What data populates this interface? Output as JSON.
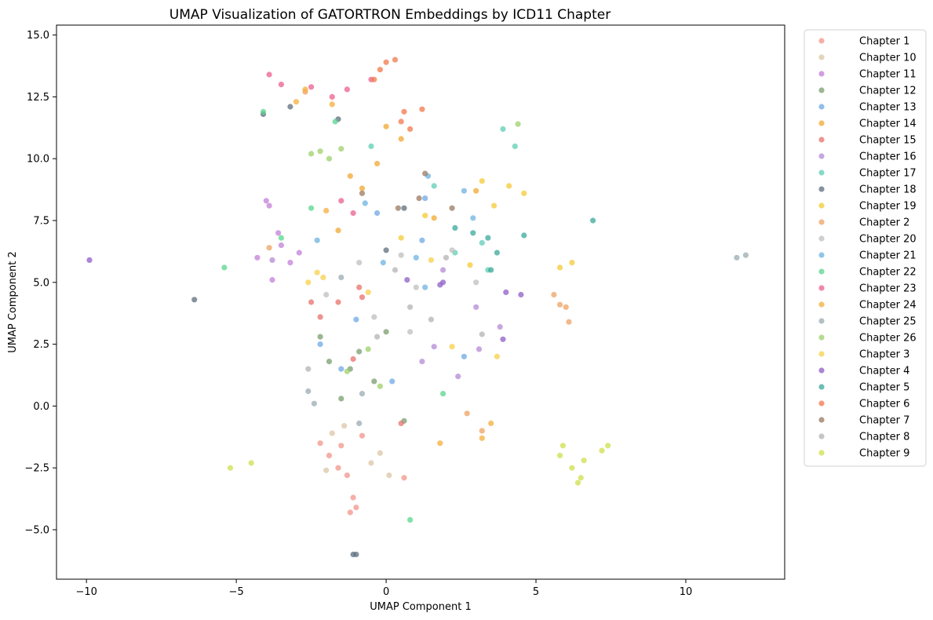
{
  "chart_data": {
    "type": "scatter",
    "title": "UMAP Visualization of GATORTRON Embeddings by ICD11 Chapter",
    "xlabel": "UMAP Component 1",
    "ylabel": "UMAP Component 2",
    "xlim": [
      -11.0,
      13.3
    ],
    "ylim": [
      -7.0,
      15.4
    ],
    "xticks": [
      -10,
      -5,
      0,
      5,
      10
    ],
    "yticks": [
      -5.0,
      -2.5,
      0.0,
      2.5,
      5.0,
      7.5,
      10.0,
      12.5,
      15.0
    ],
    "xtick_labels": [
      "−10",
      "−5",
      "0",
      "5",
      "10"
    ],
    "ytick_labels": [
      "−5.0",
      "−2.5",
      "0.0",
      "2.5",
      "5.0",
      "7.5",
      "10.0",
      "12.5",
      "15.0"
    ],
    "grid": false,
    "legend_position": "outside-right",
    "series": [
      {
        "name": "Chapter 1",
        "color": "#f1948a",
        "points": [
          [
            -1.9,
            -2.0
          ],
          [
            -1.5,
            -1.6
          ],
          [
            -1.2,
            -4.3
          ],
          [
            -1.0,
            -4.1
          ],
          [
            -1.6,
            -2.5
          ],
          [
            -1.1,
            -3.7
          ],
          [
            0.6,
            -2.9
          ],
          [
            -0.8,
            -1.2
          ],
          [
            -2.2,
            -1.5
          ],
          [
            -1.3,
            -2.8
          ]
        ]
      },
      {
        "name": "Chapter 10",
        "color": "#dcc5a6",
        "points": [
          [
            -1.8,
            -1.1
          ],
          [
            -0.5,
            -2.3
          ],
          [
            0.1,
            -2.8
          ],
          [
            -2.0,
            -2.6
          ],
          [
            -1.4,
            -0.8
          ],
          [
            -0.2,
            -1.9
          ]
        ]
      },
      {
        "name": "Chapter 11",
        "color": "#c37fd8",
        "points": [
          [
            -4.0,
            8.3
          ],
          [
            -3.5,
            6.5
          ],
          [
            -3.2,
            5.8
          ],
          [
            -3.8,
            5.1
          ],
          [
            -3.6,
            7.0
          ],
          [
            -4.3,
            6.0
          ],
          [
            -3.9,
            8.1
          ],
          [
            -2.9,
            6.2
          ]
        ]
      },
      {
        "name": "Chapter 12",
        "color": "#7a9e6e",
        "points": [
          [
            -0.9,
            2.2
          ],
          [
            -1.2,
            1.5
          ],
          [
            0.6,
            -0.6
          ],
          [
            -1.9,
            1.8
          ],
          [
            -2.2,
            2.8
          ],
          [
            0.0,
            3.0
          ],
          [
            -0.4,
            1.0
          ],
          [
            -1.5,
            0.3
          ]
        ]
      },
      {
        "name": "Chapter 13",
        "color": "#6fa8e6",
        "points": [
          [
            -1.5,
            1.5
          ],
          [
            -2.2,
            2.5
          ],
          [
            0.2,
            1.0
          ],
          [
            1.3,
            8.4
          ],
          [
            -1.0,
            3.5
          ],
          [
            2.6,
            2.0
          ],
          [
            1.2,
            6.7
          ],
          [
            -0.3,
            7.8
          ]
        ]
      },
      {
        "name": "Chapter 14",
        "color": "#f0a830",
        "points": [
          [
            -0.8,
            8.8
          ],
          [
            0.5,
            10.8
          ],
          [
            -1.2,
            9.3
          ],
          [
            -0.3,
            9.8
          ],
          [
            3.0,
            8.7
          ],
          [
            1.6,
            7.6
          ],
          [
            -1.6,
            7.1
          ],
          [
            0.0,
            11.3
          ]
        ]
      },
      {
        "name": "Chapter 15",
        "color": "#e8706a",
        "points": [
          [
            -1.6,
            4.2
          ],
          [
            -2.2,
            3.6
          ],
          [
            0.5,
            -0.7
          ],
          [
            -0.8,
            4.4
          ],
          [
            -2.5,
            4.2
          ],
          [
            -1.1,
            1.9
          ],
          [
            -0.9,
            4.8
          ]
        ]
      },
      {
        "name": "Chapter 16",
        "color": "#b48ad6",
        "points": [
          [
            2.4,
            1.2
          ],
          [
            1.2,
            1.8
          ],
          [
            3.0,
            4.0
          ],
          [
            1.9,
            5.5
          ],
          [
            3.1,
            2.3
          ],
          [
            -3.8,
            5.9
          ],
          [
            1.6,
            2.4
          ],
          [
            3.8,
            3.2
          ]
        ]
      },
      {
        "name": "Chapter 17",
        "color": "#5fcdb5",
        "points": [
          [
            3.9,
            11.2
          ],
          [
            -0.5,
            10.5
          ],
          [
            2.3,
            6.2
          ],
          [
            3.4,
            5.5
          ],
          [
            1.6,
            8.9
          ],
          [
            4.3,
            10.5
          ],
          [
            3.2,
            6.6
          ]
        ]
      },
      {
        "name": "Chapter 18",
        "color": "#5d6d7e",
        "points": [
          [
            -1.1,
            -6.0
          ],
          [
            -1.0,
            -6.0
          ],
          [
            -4.1,
            11.8
          ],
          [
            -1.6,
            11.6
          ],
          [
            -6.4,
            4.3
          ],
          [
            -3.2,
            12.1
          ],
          [
            0.0,
            6.3
          ],
          [
            0.6,
            8.0
          ]
        ]
      },
      {
        "name": "Chapter 19",
        "color": "#f4ca35",
        "points": [
          [
            1.3,
            7.7
          ],
          [
            3.6,
            8.1
          ],
          [
            4.1,
            8.9
          ],
          [
            4.6,
            8.6
          ],
          [
            5.8,
            5.6
          ],
          [
            6.2,
            5.8
          ],
          [
            0.5,
            6.8
          ],
          [
            2.8,
            5.7
          ],
          [
            3.2,
            9.1
          ]
        ]
      },
      {
        "name": "Chapter 2",
        "color": "#eda262",
        "points": [
          [
            5.6,
            4.5
          ],
          [
            6.0,
            4.0
          ],
          [
            3.2,
            -1.0
          ],
          [
            2.7,
            -0.3
          ],
          [
            -3.9,
            6.4
          ],
          [
            6.1,
            3.4
          ],
          [
            5.8,
            4.1
          ],
          [
            -2.7,
            12.7
          ]
        ]
      },
      {
        "name": "Chapter 20",
        "color": "#bfbfbf",
        "points": [
          [
            0.5,
            6.1
          ],
          [
            -0.9,
            5.8
          ],
          [
            1.0,
            4.8
          ],
          [
            2.2,
            6.3
          ],
          [
            -2.0,
            4.5
          ],
          [
            3.0,
            5.0
          ],
          [
            0.8,
            3.0
          ],
          [
            -0.4,
            3.6
          ]
        ]
      },
      {
        "name": "Chapter 21",
        "color": "#6cb3e0",
        "points": [
          [
            1.4,
            9.3
          ],
          [
            -0.7,
            8.2
          ],
          [
            2.6,
            8.7
          ],
          [
            1.0,
            6.0
          ],
          [
            1.3,
            4.8
          ],
          [
            -2.3,
            6.7
          ],
          [
            -0.1,
            5.8
          ],
          [
            2.9,
            7.6
          ]
        ]
      },
      {
        "name": "Chapter 22",
        "color": "#58d68d",
        "points": [
          [
            -4.1,
            11.9
          ],
          [
            -1.7,
            11.5
          ],
          [
            1.9,
            0.5
          ],
          [
            0.8,
            -4.6
          ],
          [
            -2.5,
            8.0
          ],
          [
            -3.5,
            6.8
          ],
          [
            -5.4,
            5.6
          ]
        ]
      },
      {
        "name": "Chapter 23",
        "color": "#ec5f8b",
        "points": [
          [
            -3.9,
            13.4
          ],
          [
            -2.5,
            12.9
          ],
          [
            -1.8,
            12.5
          ],
          [
            -1.3,
            12.8
          ],
          [
            -0.5,
            13.2
          ],
          [
            -1.5,
            8.3
          ],
          [
            -1.1,
            7.8
          ],
          [
            -3.5,
            13.0
          ]
        ]
      },
      {
        "name": "Chapter 24",
        "color": "#f5ad3a",
        "points": [
          [
            -3.0,
            12.3
          ],
          [
            -1.8,
            12.2
          ],
          [
            -2.0,
            7.9
          ],
          [
            3.5,
            -0.7
          ],
          [
            3.2,
            -1.3
          ],
          [
            1.8,
            -1.5
          ],
          [
            -2.7,
            12.8
          ]
        ]
      },
      {
        "name": "Chapter 25",
        "color": "#9aabb3",
        "points": [
          [
            -2.4,
            0.1
          ],
          [
            -0.9,
            -0.7
          ],
          [
            -0.8,
            0.5
          ],
          [
            11.7,
            6.0
          ],
          [
            12.0,
            6.1
          ],
          [
            -1.5,
            5.2
          ],
          [
            -2.6,
            0.6
          ]
        ]
      },
      {
        "name": "Chapter 26",
        "color": "#9ed06a",
        "points": [
          [
            -1.5,
            10.4
          ],
          [
            -2.5,
            10.2
          ],
          [
            -1.9,
            10.0
          ],
          [
            -0.6,
            2.3
          ],
          [
            -1.3,
            1.4
          ],
          [
            -0.2,
            0.8
          ],
          [
            -2.2,
            10.3
          ],
          [
            4.4,
            11.4
          ]
        ]
      },
      {
        "name": "Chapter 3",
        "color": "#f7d04a",
        "points": [
          [
            -2.1,
            5.2
          ],
          [
            -2.3,
            5.4
          ],
          [
            2.2,
            2.4
          ],
          [
            3.7,
            2.0
          ],
          [
            -0.6,
            4.6
          ],
          [
            -2.6,
            5.0
          ],
          [
            1.5,
            5.9
          ]
        ]
      },
      {
        "name": "Chapter 4",
        "color": "#8e5ec7",
        "points": [
          [
            1.8,
            4.9
          ],
          [
            1.9,
            5.0
          ],
          [
            4.5,
            4.5
          ],
          [
            -9.9,
            5.9
          ],
          [
            4.0,
            4.6
          ],
          [
            3.9,
            2.7
          ],
          [
            0.7,
            5.1
          ]
        ]
      },
      {
        "name": "Chapter 5",
        "color": "#3aa89a",
        "points": [
          [
            2.9,
            7.0
          ],
          [
            3.4,
            6.8
          ],
          [
            3.5,
            5.5
          ],
          [
            6.9,
            7.5
          ],
          [
            4.6,
            6.9
          ],
          [
            2.3,
            7.2
          ],
          [
            3.7,
            6.2
          ]
        ]
      },
      {
        "name": "Chapter 6",
        "color": "#f2784b",
        "points": [
          [
            -0.2,
            13.6
          ],
          [
            0.3,
            14.0
          ],
          [
            0.5,
            11.5
          ],
          [
            0.8,
            11.2
          ],
          [
            -0.4,
            13.2
          ],
          [
            1.2,
            12.0
          ],
          [
            0.0,
            13.9
          ],
          [
            0.6,
            11.9
          ]
        ]
      },
      {
        "name": "Chapter 7",
        "color": "#9a7a60",
        "points": [
          [
            1.3,
            9.4
          ],
          [
            0.4,
            8.0
          ],
          [
            -0.8,
            8.6
          ],
          [
            1.1,
            8.4
          ],
          [
            2.2,
            8.0
          ]
        ]
      },
      {
        "name": "Chapter 8",
        "color": "#b3b3b3",
        "points": [
          [
            0.8,
            4.0
          ],
          [
            -0.3,
            2.8
          ],
          [
            1.5,
            3.5
          ],
          [
            2.0,
            6.0
          ],
          [
            0.3,
            5.5
          ],
          [
            -2.6,
            1.5
          ],
          [
            3.2,
            2.9
          ]
        ]
      },
      {
        "name": "Chapter 9",
        "color": "#cfdf4a",
        "points": [
          [
            5.8,
            -2.0
          ],
          [
            6.2,
            -2.5
          ],
          [
            6.5,
            -2.9
          ],
          [
            7.2,
            -1.8
          ],
          [
            5.9,
            -1.6
          ],
          [
            6.4,
            -3.1
          ],
          [
            6.6,
            -2.2
          ],
          [
            7.4,
            -1.6
          ],
          [
            -5.2,
            -2.5
          ],
          [
            -4.5,
            -2.3
          ]
        ]
      }
    ]
  }
}
